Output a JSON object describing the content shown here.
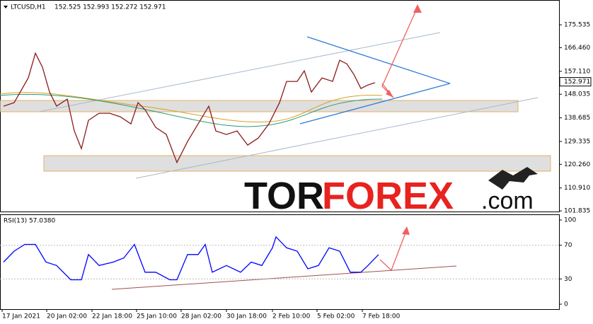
{
  "header": {
    "symbol": "LTCUSD,H1",
    "ohlc": "152.525 152.993 152.272 152.971"
  },
  "logo": {
    "part1": "TOR",
    "part2": "FOREX",
    "part3": ".com"
  },
  "price_panel": {
    "color": "#8b1a1a",
    "ylim": [
      101.3,
      184.8
    ],
    "xlim": [
      8,
      798
    ],
    "yticks": [
      175.535,
      {
        "value": 166.46,
        "label": "166.460"
      },
      {
        "value": 157.11,
        "label": "157.110"
      },
      148.035,
      138.685,
      129.335,
      {
        "value": 120.26,
        "label": "120.260"
      },
      {
        "value": 110.91,
        "label": "110.910"
      },
      101.835
    ],
    "last": 152.971,
    "x": [
      13,
      28,
      48,
      58,
      68,
      78,
      88,
      103,
      113,
      123,
      133,
      148,
      163,
      178,
      193,
      203,
      213,
      228,
      243,
      258,
      273,
      288,
      303,
      313,
      328,
      343,
      358,
      373,
      388,
      403,
      413,
      428,
      438,
      448,
      463,
      478,
      488,
      498,
      508,
      518,
      528,
      538
    ],
    "values": [
      143.3,
      144.7,
      154.5,
      164.3,
      158.7,
      148.9,
      143.3,
      146.1,
      133.5,
      126.5,
      137.7,
      140.5,
      140.5,
      139.1,
      136.3,
      144.7,
      141.9,
      134.9,
      132.1,
      121.0,
      129.3,
      136.3,
      143.3,
      133.5,
      132.1,
      133.5,
      127.9,
      130.7,
      136.3,
      144.7,
      153.1,
      153.1,
      157.3,
      148.9,
      154.5,
      153.1,
      161.5,
      160.1,
      155.9,
      150.3,
      151.7,
      152.6
    ]
  },
  "rsi_panel": {
    "label": "RSI(13) 57.0380",
    "color": "#0000ff",
    "ylim": [
      0,
      100
    ],
    "yticks": [
      100,
      70,
      30,
      0
    ],
    "x": [
      13,
      28,
      43,
      58,
      73,
      88,
      108,
      123,
      133,
      148,
      168,
      183,
      198,
      213,
      228,
      248,
      258,
      273,
      288,
      298,
      308,
      328,
      348,
      363,
      378,
      393,
      398,
      413,
      428,
      443,
      458,
      473,
      488,
      503,
      518,
      528,
      543
    ],
    "values": [
      50,
      63,
      71,
      71,
      50,
      46,
      29,
      29,
      59,
      46,
      50,
      55,
      71,
      38,
      38,
      29,
      29,
      59,
      59,
      71,
      38,
      46,
      38,
      50,
      46,
      67,
      80,
      67,
      63,
      42,
      46,
      67,
      63,
      38,
      38,
      46,
      59
    ]
  },
  "time_axis": {
    "ticks": [
      {
        "value": 11,
        "label": "17 Jan 2021"
      },
      {
        "value": 74,
        "label": "20 Jan 02:00"
      },
      {
        "value": 138,
        "label": "22 Jan 18:00"
      },
      {
        "value": 201,
        "label": "25 Jan 10:00"
      },
      {
        "value": 264,
        "label": "28 Jan 02:00"
      },
      {
        "value": 328,
        "label": "30 Jan 18:00"
      },
      {
        "value": 393,
        "label": "2 Feb 10:00"
      },
      {
        "value": 456,
        "label": "5 Feb 02:00"
      },
      {
        "value": 520,
        "label": "7 Feb 18:00"
      }
    ]
  }
}
